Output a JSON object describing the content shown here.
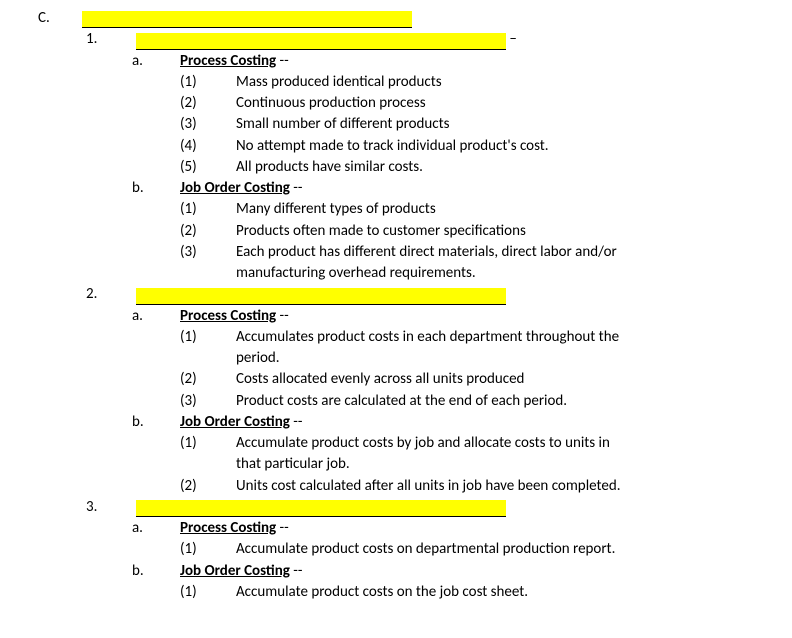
{
  "markers": {
    "c": "C.",
    "n1": "1.",
    "n2": "2.",
    "n3": "3.",
    "a": "a.",
    "b": "b.",
    "p1": "(1)",
    "p2": "(2)",
    "p3": "(3)",
    "p4": "(4)",
    "p5": "(5)"
  },
  "headings": {
    "process": "Process Costing",
    "joborder": "Job Order Costing",
    "dashlong": " --",
    "dashspaced": " –"
  },
  "s1": {
    "a": {
      "p1": "Mass produced identical products",
      "p2": "Continuous production process",
      "p3": "Small number of different products",
      "p4": "No attempt made to track individual product's cost.",
      "p5": "All products have similar costs."
    },
    "b": {
      "p1": "Many different types of products",
      "p2": "Products often made to customer specifications",
      "p3": "Each product has different direct materials, direct labor and/or",
      "p3b": "manufacturing overhead requirements."
    }
  },
  "s2": {
    "a": {
      "p1": "Accumulates product costs in each department throughout the",
      "p1b": "period.",
      "p2": "Costs allocated evenly across all units produced",
      "p3": "Product costs are calculated at the end of each period."
    },
    "b": {
      "p1": " Accumulate product costs by job and allocate costs to units in",
      "p1b": "that particular job.",
      "p2": "Units cost calculated after all units in job have been completed."
    }
  },
  "s3": {
    "a": {
      "p1": "Accumulate product costs on departmental production report."
    },
    "b": {
      "p1": "Accumulate product costs on the job cost sheet."
    }
  }
}
